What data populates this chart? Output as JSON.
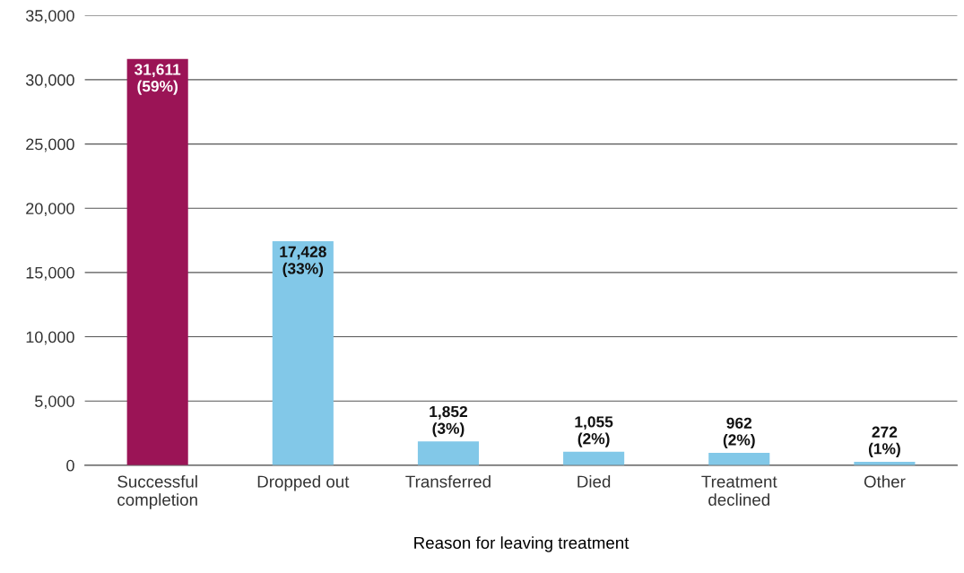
{
  "chart_data": {
    "type": "bar",
    "xlabel": "Reason for leaving treatment",
    "categories": [
      "Successful\ncompletion",
      "Dropped out",
      "Transferred",
      "Died",
      "Treatment\ndeclined",
      "Other"
    ],
    "values": [
      31611,
      17428,
      1852,
      1055,
      962,
      272
    ],
    "colors": [
      "#9b1456",
      "#82c8e8",
      "#82c8e8",
      "#82c8e8",
      "#82c8e8",
      "#82c8e8"
    ],
    "value_labels": [
      "31,611\n(59%)",
      "17,428\n(33%)",
      "1,852\n(3%)",
      "1,055\n(2%)",
      "962\n(2%)",
      "272\n(1%)"
    ],
    "ylim": [
      0,
      35000
    ],
    "yticks": [
      {
        "value": 0,
        "label": "0"
      },
      {
        "value": 5000,
        "label": "5,000"
      },
      {
        "value": 10000,
        "label": "10,000"
      },
      {
        "value": 15000,
        "label": "15,000"
      },
      {
        "value": 20000,
        "label": "20,000"
      },
      {
        "value": 25000,
        "label": "25,000"
      },
      {
        "value": 30000,
        "label": "30,000"
      },
      {
        "value": 35000,
        "label": "35,000"
      }
    ],
    "grid": "y",
    "legend": false
  }
}
